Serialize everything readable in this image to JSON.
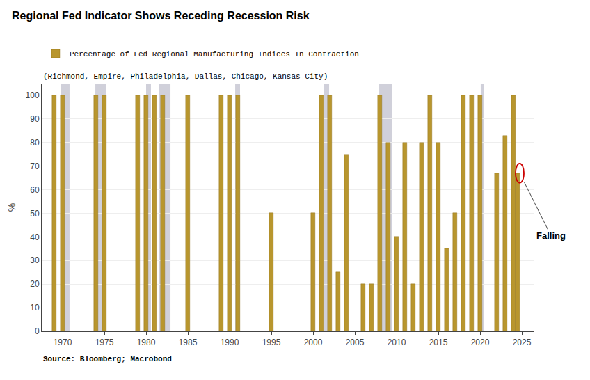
{
  "chart_data": {
    "type": "bar",
    "title": "Regional Fed Indicator Shows Receding Recession Risk",
    "subtitle": "(Richmond, Empire, Philadelphia, Dallas, Chicago, Kansas City)",
    "source": "Source: Bloomberg; Macrobond",
    "ylabel": "%",
    "x": [
      1969,
      1970,
      1974,
      1975,
      1979,
      1980,
      1981,
      1982,
      1985,
      1989,
      1990,
      1991,
      1995,
      2000,
      2001,
      2002,
      2003,
      2004,
      2006,
      2007,
      2008,
      2009,
      2010,
      2011,
      2012,
      2013,
      2014,
      2015,
      2016,
      2017,
      2018,
      2019,
      2020,
      2022,
      2023,
      2024,
      2024.5
    ],
    "series": [
      {
        "name": "Percentage of Fed Regional Manufacturing Indices In Contraction",
        "color": "#B8962E",
        "values": [
          100,
          100,
          100,
          100,
          100,
          100,
          100,
          100,
          100,
          100,
          100,
          100,
          50,
          50,
          100,
          100,
          25,
          75,
          20,
          20,
          100,
          80,
          40,
          80,
          20,
          80,
          100,
          80,
          35,
          50,
          100,
          100,
          100,
          67,
          83,
          100,
          67
        ]
      }
    ],
    "xlim": [
      1967.5,
      2026.5
    ],
    "xticks": [
      1970,
      1975,
      1980,
      1985,
      1990,
      1995,
      2000,
      2005,
      2010,
      2015,
      2020,
      2025
    ],
    "ylim": [
      0,
      105
    ],
    "yticks": [
      0,
      10,
      20,
      30,
      40,
      50,
      60,
      70,
      80,
      90,
      100
    ],
    "grid": true,
    "legend": "top left",
    "recession_periods": [
      [
        1969.75,
        1970.83
      ],
      [
        1973.92,
        1975.17
      ],
      [
        1980.0,
        1980.58
      ],
      [
        1981.5,
        1982.92
      ],
      [
        1990.67,
        1991.25
      ],
      [
        2001.25,
        2001.92
      ],
      [
        2007.92,
        2009.5
      ],
      [
        2020.08,
        2020.42
      ]
    ],
    "recession_color": "#C8C8D4",
    "annotations": [
      {
        "text": "Falling",
        "x": 2024.75,
        "y": 67,
        "color": "#CC0000"
      }
    ]
  }
}
